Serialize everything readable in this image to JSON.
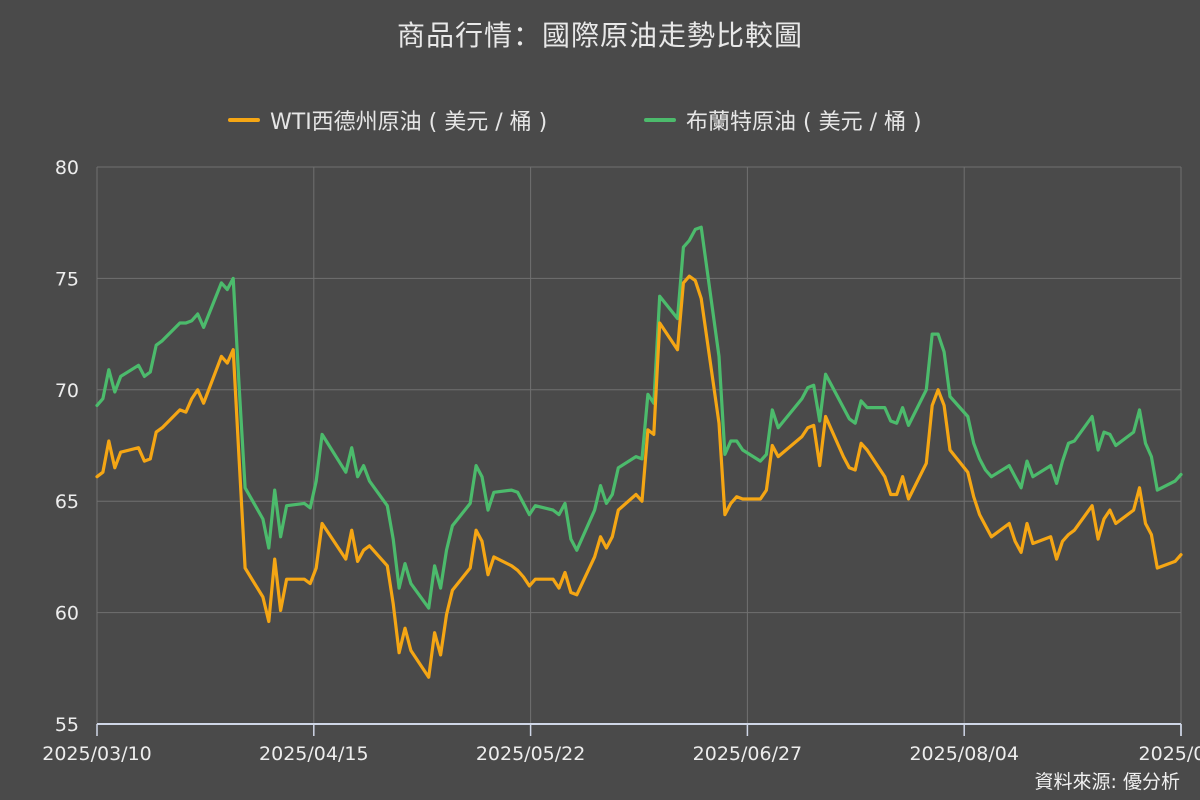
{
  "title": "商品行情：國際原油走勢比較圖",
  "source": "資料來源: 優分析",
  "legend": [
    {
      "name": "WTI西德州原油 ( 美元 / 桶 )",
      "color": "#f5a614"
    },
    {
      "name": "布蘭特原油 ( 美元 / 桶 )",
      "color": "#4cbb6c"
    }
  ],
  "chart_data": {
    "type": "line",
    "title": "商品行情：國際原油走勢比較圖",
    "xlabel": "",
    "ylabel": "",
    "x_tick_labels": [
      "2025/03/10",
      "2025/04/15",
      "2025/05/22",
      "2025/06/27",
      "2025/08/04",
      "2025/0..."
    ],
    "y_ticks": [
      55,
      60,
      65,
      70,
      75,
      80
    ],
    "ylim": [
      55,
      80
    ],
    "x_range": [
      "2025-03-10",
      "2025-09-09"
    ],
    "grid": true,
    "legend_position": "top",
    "series": [
      {
        "name": "WTI西德州原油 ( 美元 / 桶 )",
        "color": "#f5a614",
        "points": [
          [
            "2025-03-10",
            66.1
          ],
          [
            "2025-03-11",
            66.3
          ],
          [
            "2025-03-12",
            67.7
          ],
          [
            "2025-03-13",
            66.5
          ],
          [
            "2025-03-14",
            67.2
          ],
          [
            "2025-03-17",
            67.4
          ],
          [
            "2025-03-18",
            66.8
          ],
          [
            "2025-03-19",
            66.9
          ],
          [
            "2025-03-20",
            68.1
          ],
          [
            "2025-03-21",
            68.3
          ],
          [
            "2025-03-24",
            69.1
          ],
          [
            "2025-03-25",
            69.0
          ],
          [
            "2025-03-26",
            69.6
          ],
          [
            "2025-03-27",
            70.0
          ],
          [
            "2025-03-28",
            69.4
          ],
          [
            "2025-03-31",
            71.5
          ],
          [
            "2025-04-01",
            71.2
          ],
          [
            "2025-04-02",
            71.8
          ],
          [
            "2025-04-03",
            66.8
          ],
          [
            "2025-04-04",
            62.0
          ],
          [
            "2025-04-07",
            60.7
          ],
          [
            "2025-04-08",
            59.6
          ],
          [
            "2025-04-09",
            62.4
          ],
          [
            "2025-04-10",
            60.1
          ],
          [
            "2025-04-11",
            61.5
          ],
          [
            "2025-04-14",
            61.5
          ],
          [
            "2025-04-15",
            61.3
          ],
          [
            "2025-04-16",
            62.0
          ],
          [
            "2025-04-17",
            64.0
          ],
          [
            "2025-04-21",
            62.4
          ],
          [
            "2025-04-22",
            63.7
          ],
          [
            "2025-04-23",
            62.3
          ],
          [
            "2025-04-24",
            62.8
          ],
          [
            "2025-04-25",
            63.0
          ],
          [
            "2025-04-28",
            62.1
          ],
          [
            "2025-04-29",
            60.4
          ],
          [
            "2025-04-30",
            58.2
          ],
          [
            "2025-05-01",
            59.3
          ],
          [
            "2025-05-02",
            58.3
          ],
          [
            "2025-05-05",
            57.1
          ],
          [
            "2025-05-06",
            59.1
          ],
          [
            "2025-05-07",
            58.1
          ],
          [
            "2025-05-08",
            59.9
          ],
          [
            "2025-05-09",
            61.0
          ],
          [
            "2025-05-12",
            62.0
          ],
          [
            "2025-05-13",
            63.7
          ],
          [
            "2025-05-14",
            63.2
          ],
          [
            "2025-05-15",
            61.7
          ],
          [
            "2025-05-16",
            62.5
          ],
          [
            "2025-05-19",
            62.1
          ],
          [
            "2025-05-20",
            61.9
          ],
          [
            "2025-05-21",
            61.6
          ],
          [
            "2025-05-22",
            61.2
          ],
          [
            "2025-05-23",
            61.5
          ],
          [
            "2025-05-26",
            61.5
          ],
          [
            "2025-05-27",
            61.1
          ],
          [
            "2025-05-28",
            61.8
          ],
          [
            "2025-05-29",
            60.9
          ],
          [
            "2025-05-30",
            60.8
          ],
          [
            "2025-06-02",
            62.5
          ],
          [
            "2025-06-03",
            63.4
          ],
          [
            "2025-06-04",
            62.9
          ],
          [
            "2025-06-05",
            63.4
          ],
          [
            "2025-06-06",
            64.6
          ],
          [
            "2025-06-09",
            65.3
          ],
          [
            "2025-06-10",
            65.0
          ],
          [
            "2025-06-11",
            68.2
          ],
          [
            "2025-06-12",
            68.0
          ],
          [
            "2025-06-13",
            73.0
          ],
          [
            "2025-06-16",
            71.8
          ],
          [
            "2025-06-17",
            74.8
          ],
          [
            "2025-06-18",
            75.1
          ],
          [
            "2025-06-19",
            74.9
          ],
          [
            "2025-06-20",
            74.1
          ],
          [
            "2025-06-23",
            68.5
          ],
          [
            "2025-06-24",
            64.4
          ],
          [
            "2025-06-25",
            64.9
          ],
          [
            "2025-06-26",
            65.2
          ],
          [
            "2025-06-27",
            65.1
          ],
          [
            "2025-06-30",
            65.1
          ],
          [
            "2025-07-01",
            65.5
          ],
          [
            "2025-07-02",
            67.5
          ],
          [
            "2025-07-03",
            67.0
          ],
          [
            "2025-07-07",
            67.9
          ],
          [
            "2025-07-08",
            68.3
          ],
          [
            "2025-07-09",
            68.4
          ],
          [
            "2025-07-10",
            66.6
          ],
          [
            "2025-07-11",
            68.8
          ],
          [
            "2025-07-14",
            67.0
          ],
          [
            "2025-07-15",
            66.5
          ],
          [
            "2025-07-16",
            66.4
          ],
          [
            "2025-07-17",
            67.6
          ],
          [
            "2025-07-18",
            67.3
          ],
          [
            "2025-07-21",
            66.1
          ],
          [
            "2025-07-22",
            65.3
          ],
          [
            "2025-07-23",
            65.3
          ],
          [
            "2025-07-24",
            66.1
          ],
          [
            "2025-07-25",
            65.1
          ],
          [
            "2025-07-28",
            66.7
          ],
          [
            "2025-07-29",
            69.3
          ],
          [
            "2025-07-30",
            70.0
          ],
          [
            "2025-07-31",
            69.3
          ],
          [
            "2025-08-01",
            67.3
          ],
          [
            "2025-08-04",
            66.3
          ],
          [
            "2025-08-05",
            65.2
          ],
          [
            "2025-08-06",
            64.4
          ],
          [
            "2025-08-07",
            63.9
          ],
          [
            "2025-08-08",
            63.4
          ],
          [
            "2025-08-11",
            64.0
          ],
          [
            "2025-08-12",
            63.2
          ],
          [
            "2025-08-13",
            62.7
          ],
          [
            "2025-08-14",
            64.0
          ],
          [
            "2025-08-15",
            63.1
          ],
          [
            "2025-08-18",
            63.4
          ],
          [
            "2025-08-19",
            62.4
          ],
          [
            "2025-08-20",
            63.2
          ],
          [
            "2025-08-21",
            63.5
          ],
          [
            "2025-08-22",
            63.7
          ],
          [
            "2025-08-25",
            64.8
          ],
          [
            "2025-08-26",
            63.3
          ],
          [
            "2025-08-27",
            64.2
          ],
          [
            "2025-08-28",
            64.6
          ],
          [
            "2025-08-29",
            64.0
          ],
          [
            "2025-09-01",
            64.6
          ],
          [
            "2025-09-02",
            65.6
          ],
          [
            "2025-09-03",
            64.0
          ],
          [
            "2025-09-04",
            63.5
          ],
          [
            "2025-09-05",
            62.0
          ],
          [
            "2025-09-08",
            62.3
          ],
          [
            "2025-09-09",
            62.6
          ]
        ]
      },
      {
        "name": "布蘭特原油 ( 美元 / 桶 )",
        "color": "#4cbb6c",
        "points": [
          [
            "2025-03-10",
            69.3
          ],
          [
            "2025-03-11",
            69.6
          ],
          [
            "2025-03-12",
            70.9
          ],
          [
            "2025-03-13",
            69.9
          ],
          [
            "2025-03-14",
            70.6
          ],
          [
            "2025-03-17",
            71.1
          ],
          [
            "2025-03-18",
            70.6
          ],
          [
            "2025-03-19",
            70.8
          ],
          [
            "2025-03-20",
            72.0
          ],
          [
            "2025-03-21",
            72.2
          ],
          [
            "2025-03-24",
            73.0
          ],
          [
            "2025-03-25",
            73.0
          ],
          [
            "2025-03-26",
            73.1
          ],
          [
            "2025-03-27",
            73.4
          ],
          [
            "2025-03-28",
            72.8
          ],
          [
            "2025-03-31",
            74.8
          ],
          [
            "2025-04-01",
            74.5
          ],
          [
            "2025-04-02",
            75.0
          ],
          [
            "2025-04-03",
            70.1
          ],
          [
            "2025-04-04",
            65.6
          ],
          [
            "2025-04-07",
            64.2
          ],
          [
            "2025-04-08",
            62.9
          ],
          [
            "2025-04-09",
            65.5
          ],
          [
            "2025-04-10",
            63.4
          ],
          [
            "2025-04-11",
            64.8
          ],
          [
            "2025-04-14",
            64.9
          ],
          [
            "2025-04-15",
            64.7
          ],
          [
            "2025-04-16",
            65.9
          ],
          [
            "2025-04-17",
            68.0
          ],
          [
            "2025-04-21",
            66.3
          ],
          [
            "2025-04-22",
            67.4
          ],
          [
            "2025-04-23",
            66.1
          ],
          [
            "2025-04-24",
            66.6
          ],
          [
            "2025-04-25",
            65.9
          ],
          [
            "2025-04-28",
            64.8
          ],
          [
            "2025-04-29",
            63.3
          ],
          [
            "2025-04-30",
            61.1
          ],
          [
            "2025-05-01",
            62.2
          ],
          [
            "2025-05-02",
            61.3
          ],
          [
            "2025-05-05",
            60.2
          ],
          [
            "2025-05-06",
            62.1
          ],
          [
            "2025-05-07",
            61.1
          ],
          [
            "2025-05-08",
            62.8
          ],
          [
            "2025-05-09",
            63.9
          ],
          [
            "2025-05-12",
            64.9
          ],
          [
            "2025-05-13",
            66.6
          ],
          [
            "2025-05-14",
            66.1
          ],
          [
            "2025-05-15",
            64.6
          ],
          [
            "2025-05-16",
            65.4
          ],
          [
            "2025-05-19",
            65.5
          ],
          [
            "2025-05-20",
            65.4
          ],
          [
            "2025-05-21",
            64.9
          ],
          [
            "2025-05-22",
            64.4
          ],
          [
            "2025-05-23",
            64.8
          ],
          [
            "2025-05-26",
            64.6
          ],
          [
            "2025-05-27",
            64.4
          ],
          [
            "2025-05-28",
            64.9
          ],
          [
            "2025-05-29",
            63.3
          ],
          [
            "2025-05-30",
            62.8
          ],
          [
            "2025-06-02",
            64.6
          ],
          [
            "2025-06-03",
            65.7
          ],
          [
            "2025-06-04",
            64.9
          ],
          [
            "2025-06-05",
            65.3
          ],
          [
            "2025-06-06",
            66.5
          ],
          [
            "2025-06-09",
            67.0
          ],
          [
            "2025-06-10",
            66.9
          ],
          [
            "2025-06-11",
            69.8
          ],
          [
            "2025-06-12",
            69.4
          ],
          [
            "2025-06-13",
            74.2
          ],
          [
            "2025-06-16",
            73.2
          ],
          [
            "2025-06-17",
            76.4
          ],
          [
            "2025-06-18",
            76.7
          ],
          [
            "2025-06-19",
            77.2
          ],
          [
            "2025-06-20",
            77.3
          ],
          [
            "2025-06-23",
            71.5
          ],
          [
            "2025-06-24",
            67.1
          ],
          [
            "2025-06-25",
            67.7
          ],
          [
            "2025-06-26",
            67.7
          ],
          [
            "2025-06-27",
            67.3
          ],
          [
            "2025-06-30",
            66.8
          ],
          [
            "2025-07-01",
            67.1
          ],
          [
            "2025-07-02",
            69.1
          ],
          [
            "2025-07-03",
            68.3
          ],
          [
            "2025-07-07",
            69.6
          ],
          [
            "2025-07-08",
            70.1
          ],
          [
            "2025-07-09",
            70.2
          ],
          [
            "2025-07-10",
            68.6
          ],
          [
            "2025-07-11",
            70.7
          ],
          [
            "2025-07-14",
            69.2
          ],
          [
            "2025-07-15",
            68.7
          ],
          [
            "2025-07-16",
            68.5
          ],
          [
            "2025-07-17",
            69.5
          ],
          [
            "2025-07-18",
            69.2
          ],
          [
            "2025-07-21",
            69.2
          ],
          [
            "2025-07-22",
            68.6
          ],
          [
            "2025-07-23",
            68.5
          ],
          [
            "2025-07-24",
            69.2
          ],
          [
            "2025-07-25",
            68.4
          ],
          [
            "2025-07-28",
            70.0
          ],
          [
            "2025-07-29",
            72.5
          ],
          [
            "2025-07-30",
            72.5
          ],
          [
            "2025-07-31",
            71.7
          ],
          [
            "2025-08-01",
            69.7
          ],
          [
            "2025-08-04",
            68.8
          ],
          [
            "2025-08-05",
            67.6
          ],
          [
            "2025-08-06",
            66.9
          ],
          [
            "2025-08-07",
            66.4
          ],
          [
            "2025-08-08",
            66.1
          ],
          [
            "2025-08-11",
            66.6
          ],
          [
            "2025-08-12",
            66.1
          ],
          [
            "2025-08-13",
            65.6
          ],
          [
            "2025-08-14",
            66.8
          ],
          [
            "2025-08-15",
            66.1
          ],
          [
            "2025-08-18",
            66.6
          ],
          [
            "2025-08-19",
            65.8
          ],
          [
            "2025-08-20",
            66.8
          ],
          [
            "2025-08-21",
            67.6
          ],
          [
            "2025-08-22",
            67.7
          ],
          [
            "2025-08-25",
            68.8
          ],
          [
            "2025-08-26",
            67.3
          ],
          [
            "2025-08-27",
            68.1
          ],
          [
            "2025-08-28",
            68.0
          ],
          [
            "2025-08-29",
            67.5
          ],
          [
            "2025-09-01",
            68.1
          ],
          [
            "2025-09-02",
            69.1
          ],
          [
            "2025-09-03",
            67.6
          ],
          [
            "2025-09-04",
            67.0
          ],
          [
            "2025-09-05",
            65.5
          ],
          [
            "2025-09-08",
            65.9
          ],
          [
            "2025-09-09",
            66.2
          ]
        ]
      }
    ]
  }
}
